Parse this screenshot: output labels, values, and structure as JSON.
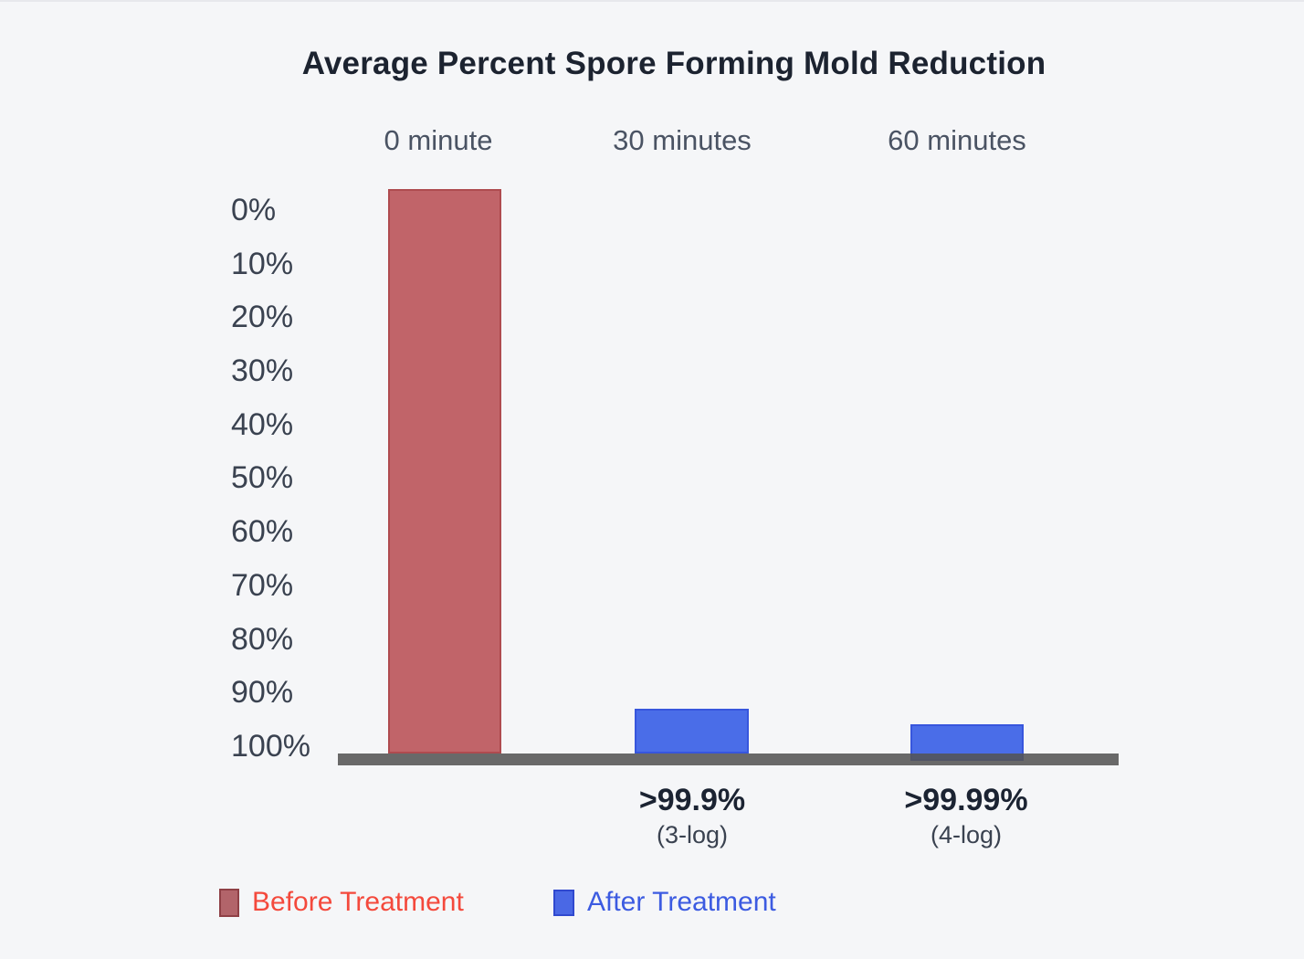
{
  "chart": {
    "title": "Average Percent Spore Forming Mold Reduction",
    "column_headers": [
      "0 minute",
      "30 minutes",
      "60 minutes"
    ],
    "y_tick_labels": [
      "0%",
      "10%",
      "20%",
      "30%",
      "40%",
      "50%",
      "60%",
      "70%",
      "80%",
      "90%",
      "100%"
    ],
    "result_labels": [
      {
        "value": ">99.9%",
        "log": "(3-log)"
      },
      {
        "value": ">99.99%",
        "log": "(4-log)"
      }
    ],
    "legend": [
      {
        "label": "Before Treatment"
      },
      {
        "label": "After Treatment"
      }
    ]
  },
  "chart_data": {
    "type": "bar",
    "title": "Average Percent Spore Forming Mold Reduction",
    "categories": [
      "0 minute",
      "30 minutes",
      "60 minutes"
    ],
    "series": [
      {
        "name": "Before Treatment",
        "color": "#c16469",
        "values": [
          100,
          null,
          null
        ],
        "note": "full-height bar at 0 minute spanning the entire 0%-100% axis"
      },
      {
        "name": "After Treatment",
        "color": "#4a6de8",
        "values": [
          null,
          99.9,
          99.99
        ],
        "data_labels": [
          null,
          ">99.9% (3-log)",
          ">99.99% (4-log)"
        ],
        "note": "short bars just above the baseline at 30 and 60 minutes"
      }
    ],
    "xlabel": "",
    "ylabel": "",
    "y_axis": {
      "ticks_percent": [
        0,
        10,
        20,
        30,
        40,
        50,
        60,
        70,
        80,
        90,
        100
      ],
      "orientation": "inverted: 0% at top, 100% at bottom (baseline)"
    },
    "annotations": [
      {
        "category": "30 minutes",
        "text": ">99.9%",
        "subtext": "(3-log)"
      },
      {
        "category": "60 minutes",
        "text": ">99.99%",
        "subtext": "(4-log)"
      }
    ],
    "legend_position": "bottom-left",
    "grid": false,
    "colors": {
      "background": "#f5f6f8",
      "title_text": "#1c2330",
      "axis_tick_text": "#3a4250",
      "column_header_text": "#4a5363",
      "baseline": "#545454",
      "before_bar": "#c16469",
      "after_bar": "#4a6de8",
      "legend_before_text": "#f4493c",
      "legend_after_text": "#3c5be1"
    }
  }
}
